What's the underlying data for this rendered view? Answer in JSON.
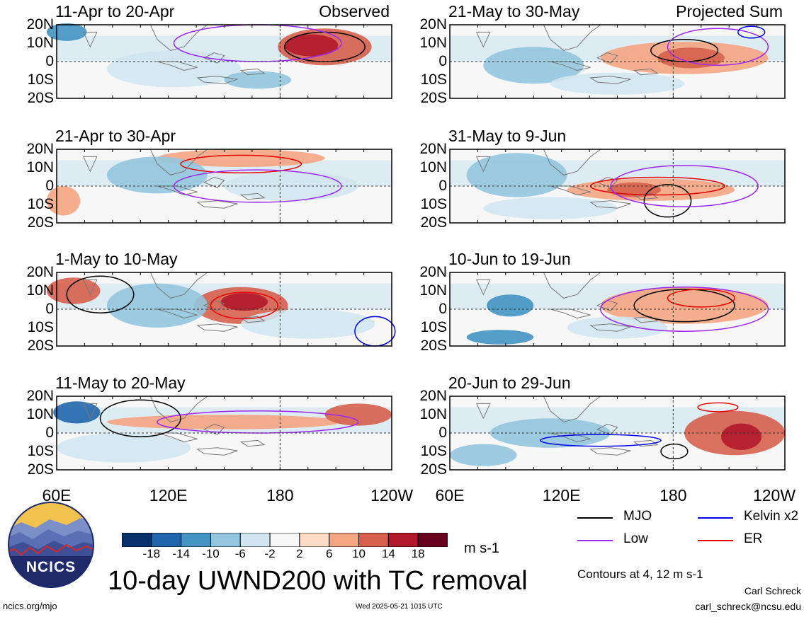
{
  "figure": {
    "main_title": "10-day UWND200 with TC removal",
    "units": "m s-1",
    "contour_note": "Contours at 4, 12 m s-1",
    "author": "Carl Schreck",
    "email": "carl_schreck@ncsu.edu",
    "site": "ncics.org/mjo",
    "timestamp": "Wed 2025-05-21 1015 UTC",
    "logo_text": "NCICS"
  },
  "columns": {
    "left_header": "Observed",
    "right_header": "Projected Sum"
  },
  "axes": {
    "y_ticks": [
      "20N",
      "10N",
      "0",
      "10S",
      "20S"
    ],
    "x_ticks": [
      "60E",
      "120E",
      "180",
      "120W"
    ]
  },
  "colorbar": {
    "ticks": [
      "-18",
      "-14",
      "-10",
      "-6",
      "-2",
      "2",
      "6",
      "10",
      "14",
      "18"
    ],
    "colors": [
      "#08306b",
      "#2166ac",
      "#4393c3",
      "#92c5de",
      "#d1e5f0",
      "#f7f7f7",
      "#fddbc7",
      "#f4a582",
      "#d6604d",
      "#b2182b",
      "#67001f"
    ]
  },
  "legend": [
    {
      "label": "MJO",
      "color": "#000000"
    },
    {
      "label": "Kelvin x2",
      "color": "#0000e6"
    },
    {
      "label": "Low",
      "color": "#9d27f0"
    },
    {
      "label": "ER",
      "color": "#e60000"
    }
  ],
  "chart_data": {
    "type": "heatmap",
    "variable": "10-day UWND200 with TC removal",
    "units": "m s-1",
    "contour_levels": [
      4,
      12
    ],
    "x_range": [
      "60E",
      "120W"
    ],
    "y_range": [
      "20S",
      "20N"
    ],
    "panels": [
      {
        "title": "11-Apr to 20-Apr",
        "header": "Observed",
        "col": 0,
        "row": 0
      },
      {
        "title": "21-Apr to 30-Apr",
        "col": 0,
        "row": 1
      },
      {
        "title": "1-May to 10-May",
        "col": 0,
        "row": 2
      },
      {
        "title": "11-May to 20-May",
        "col": 0,
        "row": 3
      },
      {
        "title": "21-May to 30-May",
        "header": "Projected Sum",
        "col": 1,
        "row": 0
      },
      {
        "title": "31-May to 9-Jun",
        "col": 1,
        "row": 1
      },
      {
        "title": "10-Jun to 19-Jun",
        "col": 1,
        "row": 2
      },
      {
        "title": "20-Jun to 29-Jun",
        "col": 1,
        "row": 3
      }
    ]
  }
}
